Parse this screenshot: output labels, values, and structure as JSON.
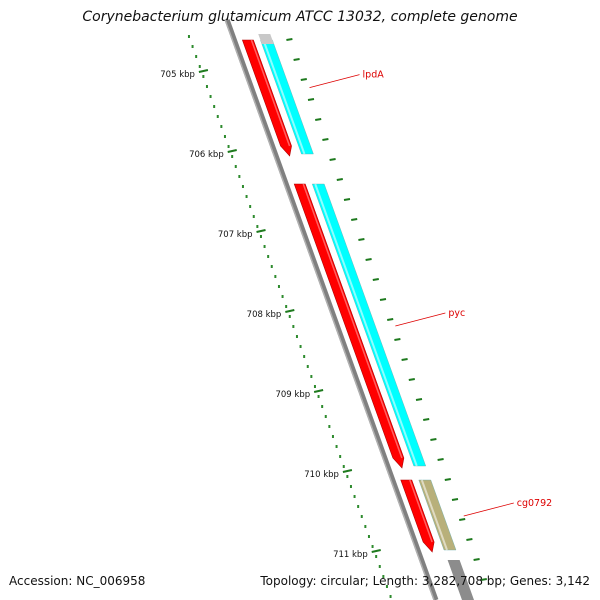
{
  "title": "Corynebacterium glutamicum ATCC 13032, complete genome",
  "footer": {
    "accession": "Accession: NC_006958",
    "summary": "Topology: circular; Length: 3,282,708 bp; Genes: 3,142"
  },
  "colors": {
    "tick": "#1e7a1e",
    "dot": "#2e8b2e",
    "backbone": "#808080",
    "gene_red": "#ff0000",
    "gene_cyan": "#00ffff",
    "gene_khaki": "#b8b07a",
    "label": "#dd0000"
  },
  "ruler": {
    "ticks": [
      {
        "kbp": 705,
        "label": "705 kbp"
      },
      {
        "kbp": 706,
        "label": "706 kbp"
      },
      {
        "kbp": 707,
        "label": "707 kbp"
      },
      {
        "kbp": 708,
        "label": "708 kbp"
      },
      {
        "kbp": 709,
        "label": "709 kbp"
      },
      {
        "kbp": 710,
        "label": "710 kbp"
      },
      {
        "kbp": 711,
        "label": "711 kbp"
      }
    ]
  },
  "genes": [
    {
      "name": "lpdA",
      "track": "forward",
      "start_kbp": 704.6,
      "end_kbp": 706.05
    },
    {
      "name": "pyc",
      "track": "forward",
      "start_kbp": 706.4,
      "end_kbp": 709.95
    },
    {
      "name": "cg0792",
      "track": "forward",
      "start_kbp": 710.1,
      "end_kbp": 711.0
    }
  ]
}
